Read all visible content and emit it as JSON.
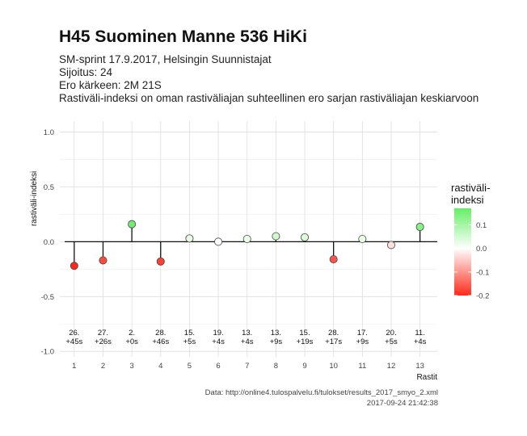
{
  "title": "H45 Suominen Manne 536 HiKi",
  "subtitle_lines": [
    "SM-sprint 17.9.2017, Helsingin Suunnistajat",
    "Sijoitus: 24",
    "Ero kärkeen: 2M 21S",
    "Rastiväli-indeksi on oman rastiväliajan suhteellinen ero sarjan rastiväliajan keskiarvoon"
  ],
  "caption": {
    "source": "Data: http://online4.tulospalvelu.fi/tulokset/results_2017_smyo_2.xml",
    "timestamp": "2017-09-24 21:42:38"
  },
  "chart_data": {
    "type": "scatter",
    "xlabel": "Rastit",
    "ylabel": "rastiväli-indeksi",
    "ylim": [
      -1.05,
      1.1
    ],
    "xlim": [
      0.5,
      13.6
    ],
    "yticks": [
      -1.0,
      -0.5,
      0.0,
      0.5,
      1.0
    ],
    "ytick_labels": [
      "-1.0",
      "-0.5",
      "0.0",
      "0.5",
      "1.0"
    ],
    "x": [
      1,
      2,
      3,
      4,
      5,
      6,
      7,
      8,
      9,
      10,
      11,
      12,
      13
    ],
    "values": [
      -0.22,
      -0.17,
      0.16,
      -0.18,
      0.03,
      0.0,
      0.025,
      0.05,
      0.04,
      -0.16,
      0.025,
      -0.03,
      0.135
    ],
    "annotations": [
      [
        "26.",
        "+45s"
      ],
      [
        "27.",
        "+26s"
      ],
      [
        "2.",
        "+0s"
      ],
      [
        "28.",
        "+46s"
      ],
      [
        "15.",
        "+5s"
      ],
      [
        "19.",
        "+4s"
      ],
      [
        "13.",
        "+4s"
      ],
      [
        "13.",
        "+9s"
      ],
      [
        "15.",
        "+19s"
      ],
      [
        "28.",
        "+17s"
      ],
      [
        "17.",
        "+9s"
      ],
      [
        "20.",
        "+5s"
      ],
      [
        "11.",
        "+4s"
      ]
    ],
    "grid": true,
    "legend": {
      "title_lines": [
        "rastiväli-",
        "indeksi"
      ],
      "position": "right",
      "range": [
        -0.2,
        0.17
      ],
      "ticks": [
        0.1,
        0.0,
        -0.1,
        -0.2
      ],
      "tick_labels": [
        "0.1",
        "0.0",
        "-0.1",
        "-0.2"
      ]
    },
    "colors": {
      "low": "#ff2a1a",
      "mid": "#ffffff",
      "high": "#66ee66"
    }
  }
}
